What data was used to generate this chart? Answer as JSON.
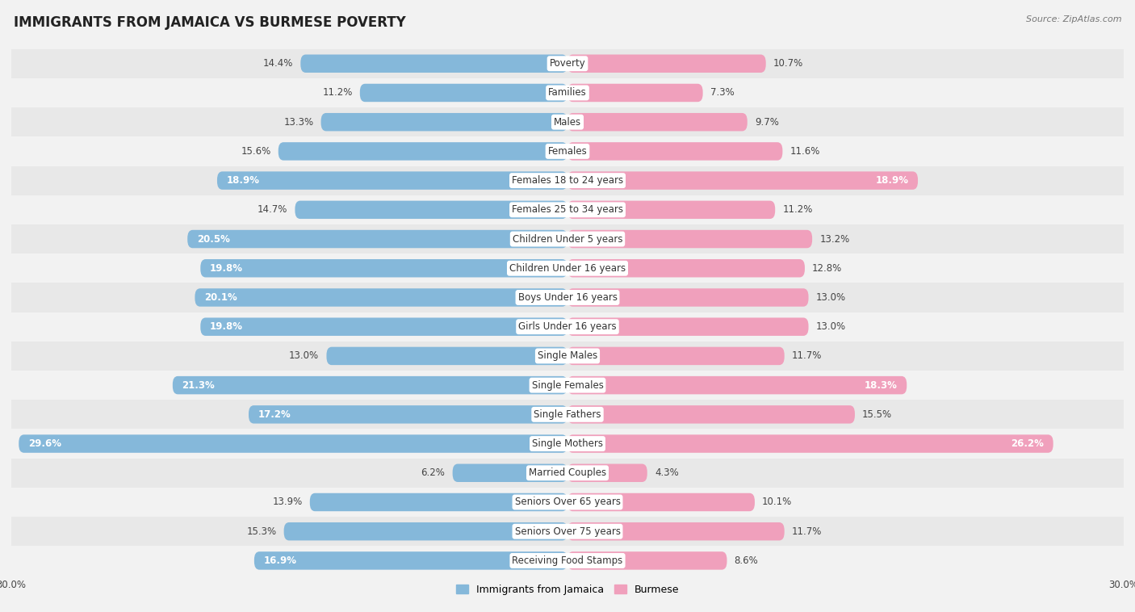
{
  "title": "IMMIGRANTS FROM JAMAICA VS BURMESE POVERTY",
  "source": "Source: ZipAtlas.com",
  "categories": [
    "Poverty",
    "Families",
    "Males",
    "Females",
    "Females 18 to 24 years",
    "Females 25 to 34 years",
    "Children Under 5 years",
    "Children Under 16 years",
    "Boys Under 16 years",
    "Girls Under 16 years",
    "Single Males",
    "Single Females",
    "Single Fathers",
    "Single Mothers",
    "Married Couples",
    "Seniors Over 65 years",
    "Seniors Over 75 years",
    "Receiving Food Stamps"
  ],
  "jamaica_values": [
    14.4,
    11.2,
    13.3,
    15.6,
    18.9,
    14.7,
    20.5,
    19.8,
    20.1,
    19.8,
    13.0,
    21.3,
    17.2,
    29.6,
    6.2,
    13.9,
    15.3,
    16.9
  ],
  "burmese_values": [
    10.7,
    7.3,
    9.7,
    11.6,
    18.9,
    11.2,
    13.2,
    12.8,
    13.0,
    13.0,
    11.7,
    18.3,
    15.5,
    26.2,
    4.3,
    10.1,
    11.7,
    8.6
  ],
  "jamaica_color": "#85b8da",
  "burmese_color": "#f0a0bc",
  "axis_max": 30.0,
  "background_color": "#f2f2f2",
  "row_colors": [
    "#e8e8e8",
    "#f2f2f2"
  ],
  "bar_height": 0.62,
  "inside_label_threshold": 16.0,
  "title_fontsize": 12,
  "label_fontsize": 8.5,
  "value_fontsize": 8.5,
  "legend_fontsize": 9,
  "source_fontsize": 8
}
